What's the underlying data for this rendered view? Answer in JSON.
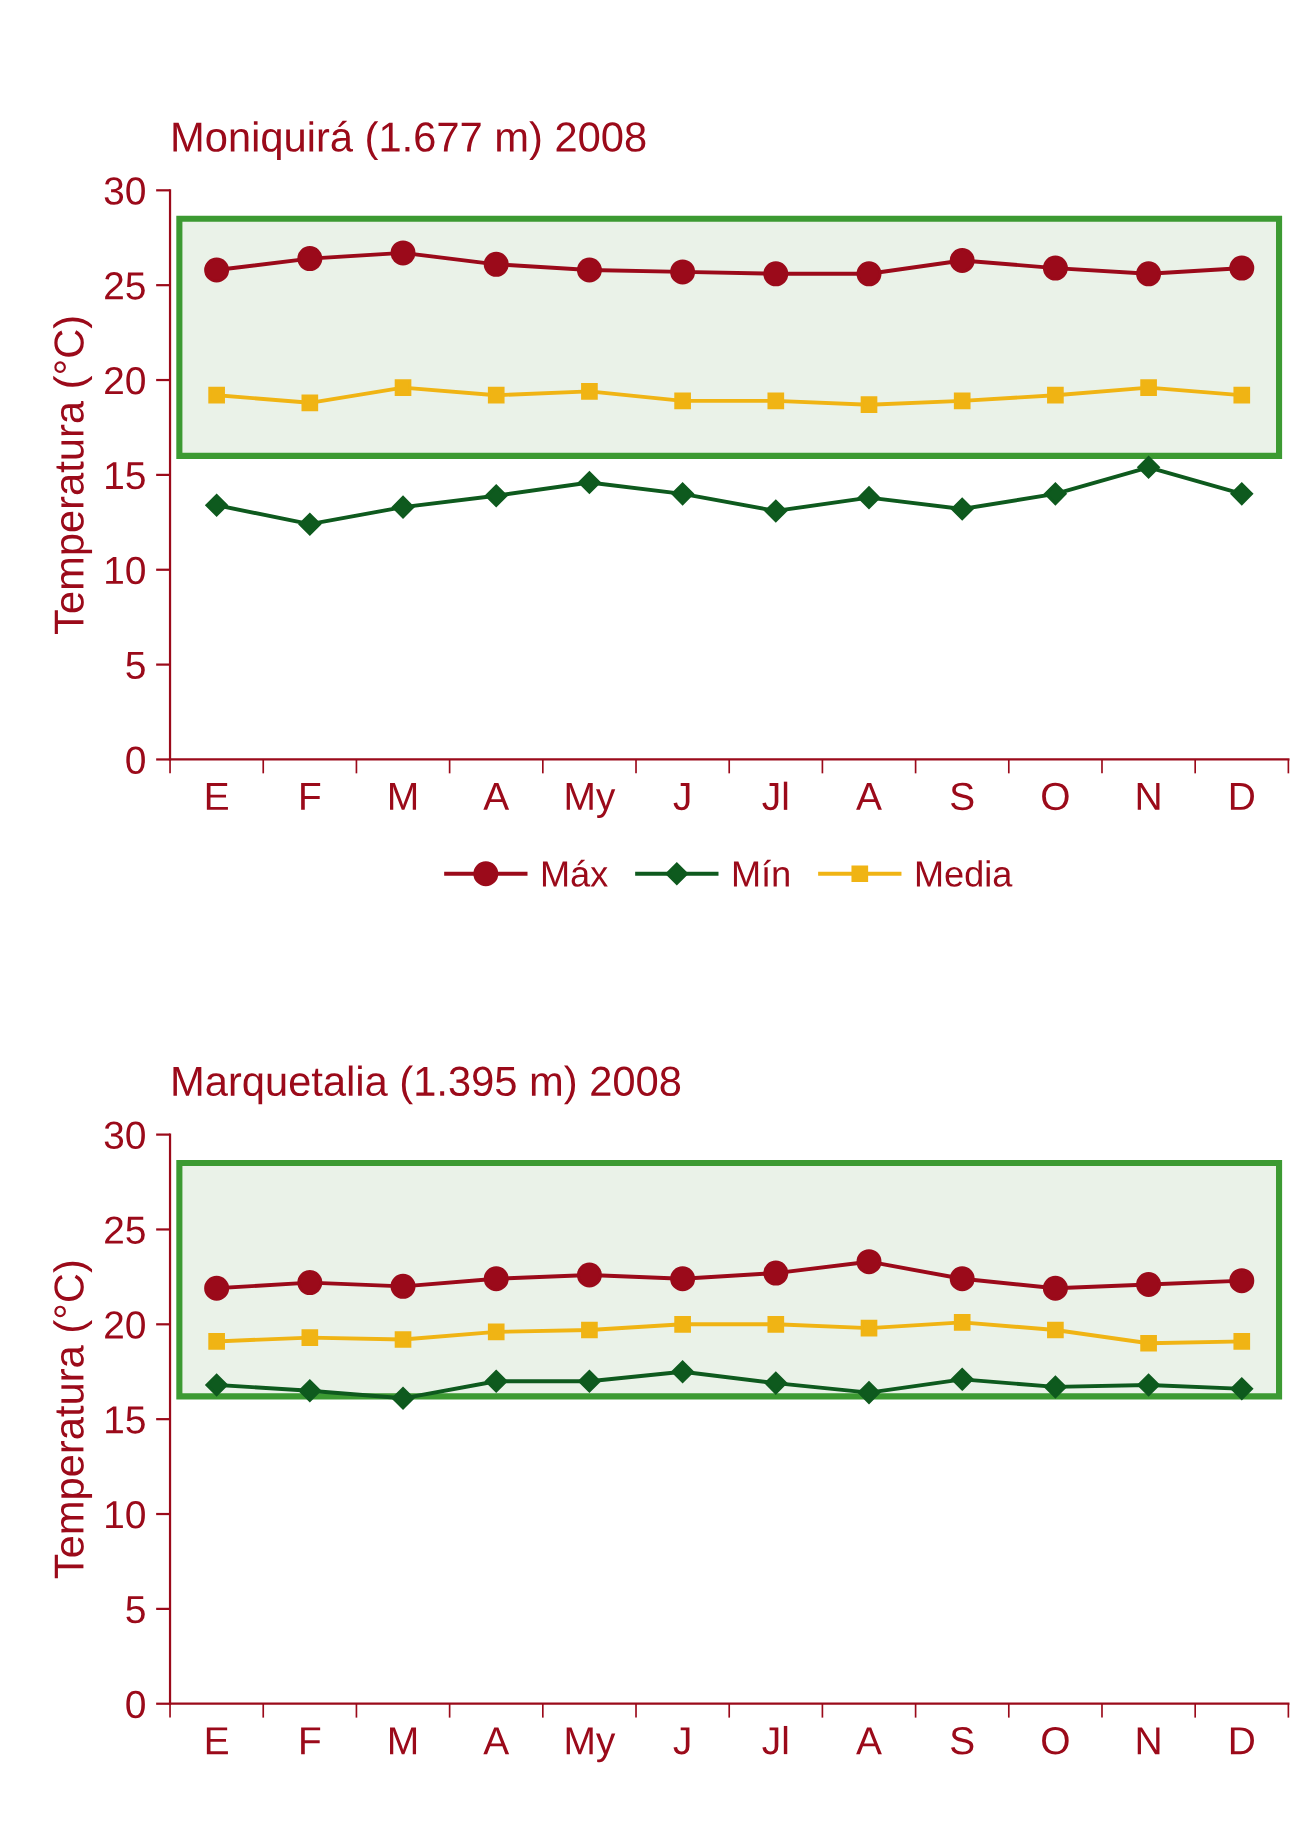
{
  "chart_data": [
    {
      "type": "line",
      "title": "Moniquirá (1.677 m) 2008",
      "ylabel": "Temperatura (°C)",
      "categories": [
        "E",
        "F",
        "M",
        "A",
        "My",
        "J",
        "Jl",
        "A",
        "S",
        "O",
        "N",
        "D"
      ],
      "series": [
        {
          "name": "Máx",
          "color": "#9b0a1a",
          "marker": "circle",
          "values": [
            25.8,
            26.4,
            26.7,
            26.1,
            25.8,
            25.7,
            25.6,
            25.6,
            26.3,
            25.9,
            25.6,
            25.9
          ]
        },
        {
          "name": "Mín",
          "color": "#0e5a1e",
          "marker": "diamond",
          "values": [
            13.4,
            12.4,
            13.3,
            13.9,
            14.6,
            14.0,
            13.1,
            13.8,
            13.2,
            14.0,
            15.4,
            14.0
          ]
        },
        {
          "name": "Media",
          "color": "#f0b414",
          "marker": "square",
          "values": [
            19.2,
            18.8,
            19.6,
            19.2,
            19.4,
            18.9,
            18.9,
            18.7,
            18.9,
            19.2,
            19.6,
            19.2
          ]
        }
      ],
      "bands": [
        {
          "axis": "y",
          "from": 16.0,
          "to": 28.5,
          "color": "#eaf2e8"
        }
      ],
      "ylim": [
        0,
        30
      ],
      "yticks": [
        0,
        5,
        10,
        15,
        20,
        25,
        30
      ],
      "grid": false,
      "legend": "bottom"
    },
    {
      "type": "line",
      "title": "Marquetalia (1.395 m) 2008",
      "ylabel": "Temperatura (°C)",
      "categories": [
        "E",
        "F",
        "M",
        "A",
        "My",
        "J",
        "Jl",
        "A",
        "S",
        "O",
        "N",
        "D"
      ],
      "series": [
        {
          "color": "#9b0a1a",
          "marker": "circle",
          "values": [
            21.9,
            22.2,
            22.0,
            22.4,
            22.6,
            22.4,
            22.7,
            23.3,
            22.4,
            21.9,
            22.1,
            22.3
          ]
        },
        {
          "color": "#0e5a1e",
          "marker": "diamond",
          "values": [
            16.8,
            16.5,
            16.1,
            17.0,
            17.0,
            17.5,
            16.9,
            16.4,
            17.1,
            16.7,
            16.8,
            16.6
          ]
        },
        {
          "color": "#f0b414",
          "marker": "square",
          "values": [
            19.1,
            19.3,
            19.2,
            19.6,
            19.7,
            20.0,
            20.0,
            19.8,
            20.1,
            19.7,
            19.0,
            19.1
          ]
        }
      ],
      "bands": [
        {
          "axis": "y",
          "from": 16.2,
          "to": 28.5,
          "color": "#eaf2e8"
        }
      ],
      "ylim": [
        0,
        30
      ],
      "yticks": [
        0,
        5,
        10,
        15,
        20,
        25,
        30
      ],
      "grid": false,
      "legend": false
    }
  ]
}
